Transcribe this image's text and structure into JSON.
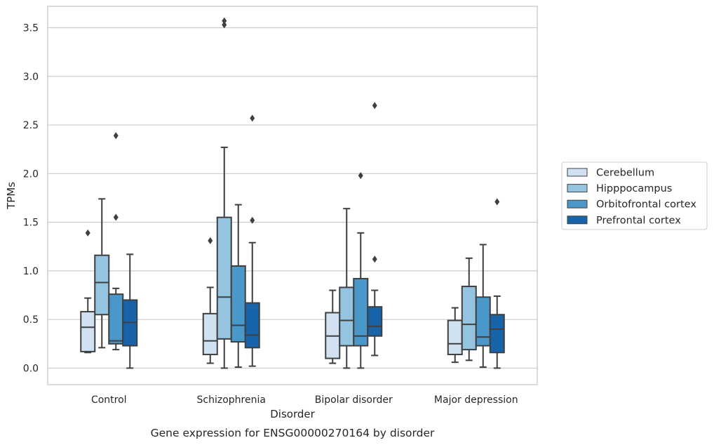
{
  "chart_data": {
    "type": "box",
    "title": "",
    "caption": "Gene expression for ENSG00000270164 by disorder",
    "xlabel": "Disorder",
    "ylabel": "TPMs",
    "ylim": [
      -0.17,
      3.72
    ],
    "yticks": [
      0.0,
      0.5,
      1.0,
      1.5,
      2.0,
      2.5,
      3.0,
      3.5
    ],
    "ytick_labels": [
      "0.0",
      "0.5",
      "1.0",
      "1.5",
      "2.0",
      "2.5",
      "3.0",
      "3.5"
    ],
    "grid": "horizontal",
    "legend_position": "right",
    "categories": [
      "Control",
      "Schizophrenia",
      "Bipolar disorder",
      "Major depression"
    ],
    "series": [
      {
        "name": "Cerebellum",
        "color": "#d0e1f2",
        "boxes": [
          {
            "whisker_low": 0.16,
            "q1": 0.17,
            "median": 0.42,
            "q3": 0.58,
            "whisker_high": 0.72,
            "outliers": [
              1.39
            ]
          },
          {
            "whisker_low": 0.05,
            "q1": 0.14,
            "median": 0.28,
            "q3": 0.56,
            "whisker_high": 0.83,
            "outliers": [
              1.31
            ]
          },
          {
            "whisker_low": 0.05,
            "q1": 0.1,
            "median": 0.33,
            "q3": 0.57,
            "whisker_high": 0.8,
            "outliers": []
          },
          {
            "whisker_low": 0.06,
            "q1": 0.14,
            "median": 0.25,
            "q3": 0.49,
            "whisker_high": 0.62,
            "outliers": []
          }
        ]
      },
      {
        "name": "Hipppocampus",
        "color": "#94c4df",
        "boxes": [
          {
            "whisker_low": 0.21,
            "q1": 0.55,
            "median": 0.88,
            "q3": 1.16,
            "whisker_high": 1.74,
            "outliers": []
          },
          {
            "whisker_low": 0.0,
            "q1": 0.3,
            "median": 0.73,
            "q3": 1.55,
            "whisker_high": 2.27,
            "outliers": [
              3.53,
              3.57
            ]
          },
          {
            "whisker_low": 0.0,
            "q1": 0.23,
            "median": 0.49,
            "q3": 0.83,
            "whisker_high": 1.64,
            "outliers": []
          },
          {
            "whisker_low": 0.08,
            "q1": 0.19,
            "median": 0.45,
            "q3": 0.84,
            "whisker_high": 1.13,
            "outliers": []
          }
        ]
      },
      {
        "name": "Orbitofrontal cortex",
        "color": "#4a98c9",
        "boxes": [
          {
            "whisker_low": 0.19,
            "q1": 0.25,
            "median": 0.28,
            "q3": 0.76,
            "whisker_high": 0.82,
            "outliers": [
              1.55,
              2.39
            ]
          },
          {
            "whisker_low": 0.01,
            "q1": 0.27,
            "median": 0.44,
            "q3": 1.05,
            "whisker_high": 1.68,
            "outliers": []
          },
          {
            "whisker_low": 0.0,
            "q1": 0.23,
            "median": 0.33,
            "q3": 0.92,
            "whisker_high": 1.39,
            "outliers": [
              1.98
            ]
          },
          {
            "whisker_low": 0.01,
            "q1": 0.23,
            "median": 0.32,
            "q3": 0.73,
            "whisker_high": 1.27,
            "outliers": []
          }
        ]
      },
      {
        "name": "Prefrontal cortex",
        "color": "#1764ab",
        "boxes": [
          {
            "whisker_low": 0.0,
            "q1": 0.23,
            "median": 0.47,
            "q3": 0.7,
            "whisker_high": 1.17,
            "outliers": []
          },
          {
            "whisker_low": 0.02,
            "q1": 0.21,
            "median": 0.34,
            "q3": 0.67,
            "whisker_high": 1.29,
            "outliers": [
              1.52,
              2.57
            ]
          },
          {
            "whisker_low": 0.13,
            "q1": 0.33,
            "median": 0.43,
            "q3": 0.63,
            "whisker_high": 0.8,
            "outliers": [
              1.12,
              2.7
            ]
          },
          {
            "whisker_low": 0.0,
            "q1": 0.16,
            "median": 0.4,
            "q3": 0.55,
            "whisker_high": 0.74,
            "outliers": [
              1.71
            ]
          }
        ]
      }
    ]
  }
}
